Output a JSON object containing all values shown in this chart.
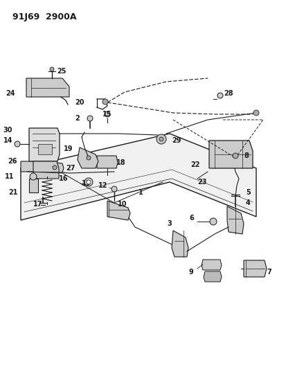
{
  "title": "91J69  2900A",
  "bg_color": "#ffffff",
  "line_color": "#1a1a1a",
  "label_fontsize": 7,
  "fig_w": 4.14,
  "fig_h": 5.33,
  "dpi": 100
}
